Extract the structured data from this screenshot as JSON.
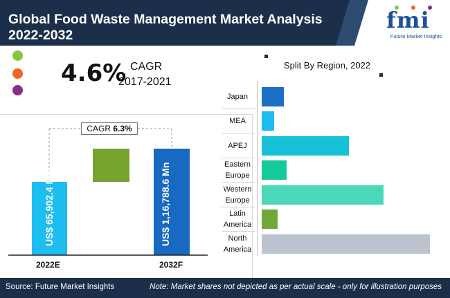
{
  "header": {
    "title_line1": "Global Food Waste Management Market Analysis",
    "title_line2": "2022-2032",
    "logo_text": "fmi",
    "logo_subtitle": "Future Market Insights"
  },
  "colors": {
    "navy": "#1b2f4a",
    "bar_2022": "#1ebdf0",
    "bar_2032": "#1769c1",
    "gap_block": "#76a22e",
    "dot_green": "#8ac53f",
    "dot_orange": "#f26522",
    "dot_purple": "#8e2a8c"
  },
  "headline": {
    "cagr_value": "4.6%",
    "cagr_label": "CAGR",
    "cagr_period": "2017-2021"
  },
  "chart_data": [
    {
      "type": "bar",
      "categories": [
        "2022E",
        "2032F"
      ],
      "values": [
        65902.4,
        116788.6
      ],
      "value_labels": [
        "US$ 65,902.4 Mn",
        "US$ 1,16,788.6 Mn"
      ],
      "annotation": {
        "label": "CAGR",
        "value": "6.3%"
      }
    },
    {
      "type": "bar",
      "orientation": "horizontal",
      "title": "Split By Region, 2022",
      "categories": [
        "Japan",
        "MEA",
        "APEJ",
        "Eastern Europe",
        "Western Europe",
        "Latin America",
        "North America"
      ],
      "category_lines": [
        [
          "Japan"
        ],
        [
          "MEA"
        ],
        [
          "APEJ"
        ],
        [
          "Eastern",
          "Europe"
        ],
        [
          "Western",
          "Europe"
        ],
        [
          "Latin",
          "America"
        ],
        [
          "North",
          "America"
        ]
      ],
      "values": [
        3.5,
        2.0,
        14.0,
        4.0,
        19.5,
        2.5,
        27.0
      ],
      "colors": [
        "#1d6fc6",
        "#1ebdf0",
        "#17c1d6",
        "#14c99a",
        "#4bd8b8",
        "#72a83a",
        "#bcc3ce"
      ]
    }
  ],
  "footer": {
    "source": "Source: Future Market Insights",
    "note": "Note: Market shares not depicted as per actual scale - only for illustration purposes"
  }
}
